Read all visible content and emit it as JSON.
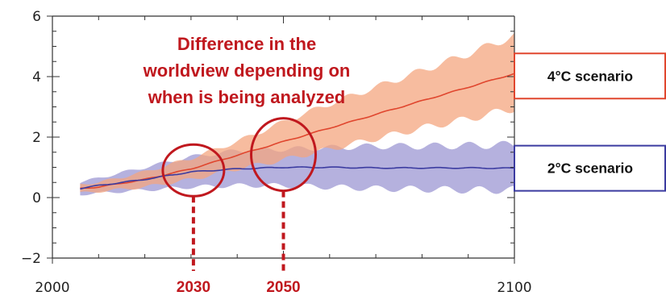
{
  "chart_data": {
    "type": "area",
    "xlim": [
      2000,
      2100
    ],
    "ylim": [
      -2,
      6
    ],
    "x_ticks": [
      2000,
      2100
    ],
    "y_ticks": [
      -2,
      0,
      2,
      4,
      6
    ],
    "series": [
      {
        "name": "4°C scenario",
        "color": "#e0462e",
        "band_color": "#f4a57f",
        "x": [
          2006,
          2010,
          2020,
          2030,
          2040,
          2050,
          2060,
          2070,
          2080,
          2090,
          2100
        ],
        "values": [
          0.3,
          0.35,
          0.6,
          0.95,
          1.4,
          1.85,
          2.3,
          2.75,
          3.2,
          3.65,
          4.1
        ],
        "lower": [
          0.15,
          0.2,
          0.35,
          0.6,
          0.95,
          1.25,
          1.6,
          1.95,
          2.3,
          2.6,
          2.95
        ],
        "upper": [
          0.45,
          0.5,
          0.85,
          1.3,
          1.85,
          2.5,
          3.1,
          3.65,
          4.2,
          4.75,
          5.35
        ]
      },
      {
        "name": "2°C scenario",
        "color": "#3b3ba0",
        "band_color": "#a8a3d8",
        "x": [
          2006,
          2010,
          2020,
          2030,
          2040,
          2050,
          2060,
          2070,
          2080,
          2090,
          2100
        ],
        "values": [
          0.3,
          0.4,
          0.6,
          0.85,
          0.95,
          1.0,
          1.0,
          0.98,
          0.98,
          0.98,
          0.97
        ],
        "lower": [
          0.1,
          0.15,
          0.25,
          0.35,
          0.4,
          0.4,
          0.35,
          0.3,
          0.28,
          0.25,
          0.25
        ],
        "upper": [
          0.5,
          0.65,
          1.0,
          1.35,
          1.55,
          1.6,
          1.65,
          1.7,
          1.7,
          1.72,
          1.75
        ]
      }
    ],
    "annotation": "Difference in the worldview depending on when is being analyzed",
    "markers": [
      {
        "year": 2030,
        "label": "2030"
      },
      {
        "year": 2050,
        "label": "2050"
      }
    ],
    "callouts": [
      {
        "label": "4°C scenario",
        "series": 0
      },
      {
        "label": "2°C scenario",
        "series": 1
      }
    ],
    "accent_color": "#c0181e"
  }
}
